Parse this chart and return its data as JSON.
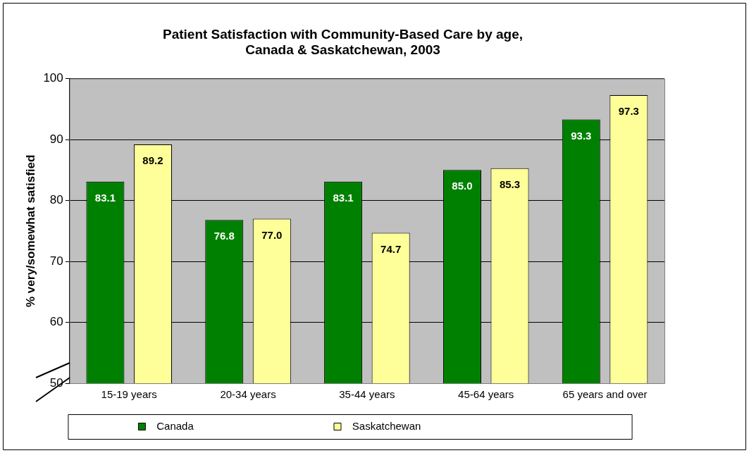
{
  "chart_data": {
    "type": "bar",
    "title": "Patient Satisfaction with Community-Based Care by age, Canada & Saskatchewan, 2003",
    "ylabel": "% very/somewhat satisfied",
    "categories": [
      "15-19 years",
      "20-34 years",
      "35-44 years",
      "45-64 years",
      "65 years and over"
    ],
    "series": [
      {
        "name": "Canada",
        "color": "#008000",
        "values": [
          83.1,
          76.8,
          83.1,
          85.0,
          93.3
        ],
        "value_labels": [
          "83.1",
          "76.8",
          "83.1",
          "85.0",
          "93.3"
        ]
      },
      {
        "name": "Saskatchewan",
        "color": "#ffff99",
        "values": [
          89.2,
          77.0,
          74.7,
          85.3,
          97.3
        ],
        "value_labels": [
          "89.2",
          "77.0",
          "74.7",
          "85.3",
          "97.3"
        ]
      }
    ],
    "ylim": [
      50,
      100
    ],
    "yticks": [
      50,
      60,
      70,
      80,
      90,
      100
    ],
    "grid": "y",
    "legend": "bottom"
  }
}
